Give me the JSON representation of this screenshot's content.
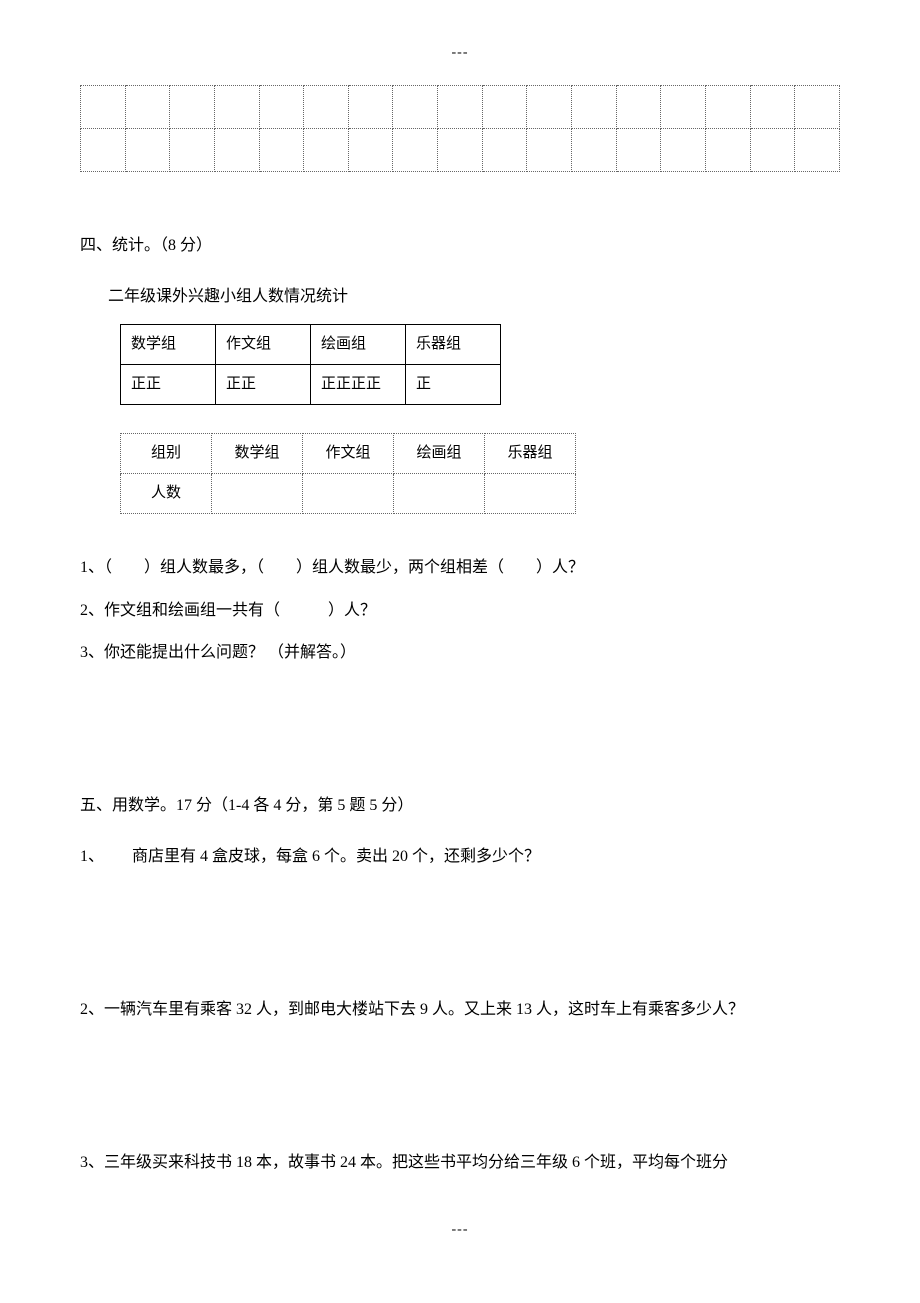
{
  "top_marker": "---",
  "bottom_marker": "---",
  "empty_grid": {
    "rows": 2,
    "cols": 17
  },
  "section4": {
    "title": "四、统计。（8 分）",
    "subtitle": "二年级课外兴趣小组人数情况统计",
    "tally": {
      "headers": [
        "数学组",
        "作文组",
        "绘画组",
        "乐器组"
      ],
      "row": [
        "正正",
        "正正",
        "正正正正",
        "正"
      ]
    },
    "count_table": {
      "row1": [
        "组别",
        "数学组",
        "作文组",
        "绘画组",
        "乐器组"
      ],
      "row2_label": "人数"
    },
    "q1": "1、（　　）组人数最多，（　　）组人数最少，两个组相差（　　）人？",
    "q2": "2、作文组和绘画组一共有（　　　）人？",
    "q3": "3、你还能提出什么问题？ （并解答。）"
  },
  "section5": {
    "title": "五、用数学。17 分（1-4 各 4 分，第 5 题 5 分）",
    "q1_num": "1、",
    "q1_text": "商店里有 4 盒皮球，每盒 6 个。卖出 20 个，还剩多少个？",
    "q2": "2、一辆汽车里有乘客 32 人，到邮电大楼站下去 9 人。又上来 13 人，这时车上有乘客多少人？",
    "q3": "3、三年级买来科技书 18 本，故事书 24 本。把这些书平均分给三年级 6 个班，平均每个班分"
  }
}
